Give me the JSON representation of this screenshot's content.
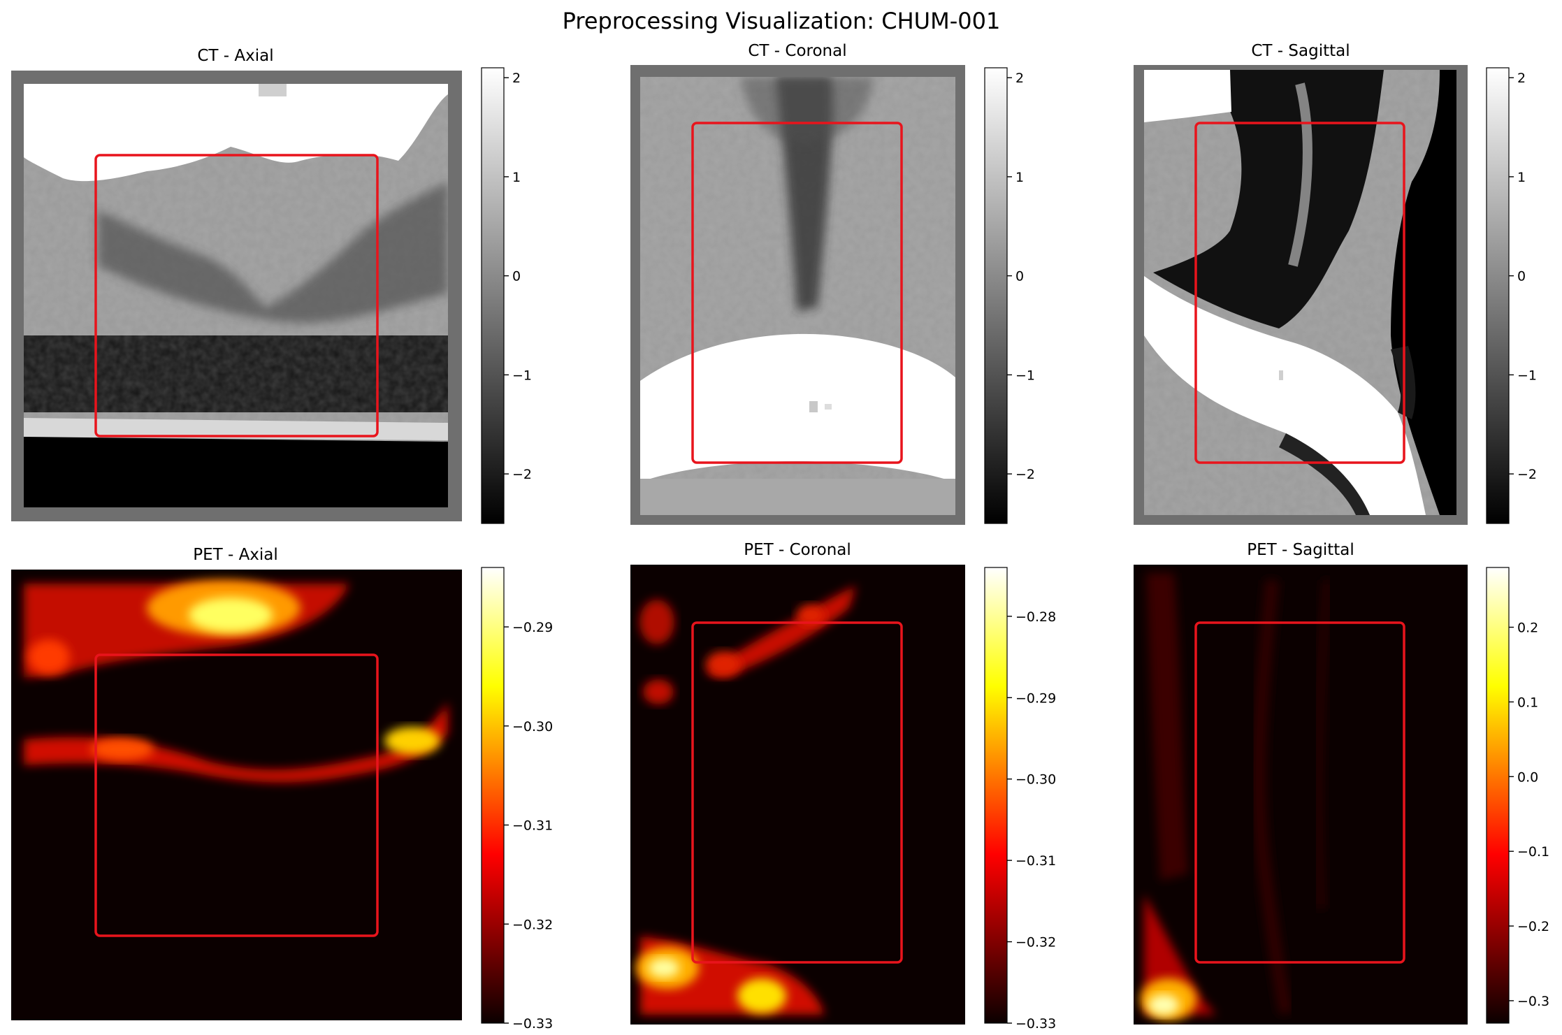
{
  "figure": {
    "title": "Preprocessing Visualization: CHUM-001"
  },
  "chart_data": [
    {
      "type": "heatmap",
      "title": "CT - Axial",
      "modality": "CT",
      "colormap": "gray",
      "colorbar": {
        "ticks": [
          -2,
          -1,
          0,
          1,
          2
        ],
        "tick_labels": [
          "−2",
          "−1",
          "0",
          "1",
          "2"
        ],
        "range": [
          -2.5,
          2.1
        ]
      },
      "bounding_box_color": "#e8141c"
    },
    {
      "type": "heatmap",
      "title": "CT - Coronal",
      "modality": "CT",
      "colormap": "gray",
      "colorbar": {
        "ticks": [
          -2,
          -1,
          0,
          1,
          2
        ],
        "tick_labels": [
          "−2",
          "−1",
          "0",
          "1",
          "2"
        ],
        "range": [
          -2.5,
          2.1
        ]
      },
      "bounding_box_color": "#e8141c"
    },
    {
      "type": "heatmap",
      "title": "CT - Sagittal",
      "modality": "CT",
      "colormap": "gray",
      "colorbar": {
        "ticks": [
          -2,
          -1,
          0,
          1,
          2
        ],
        "tick_labels": [
          "−2",
          "−1",
          "0",
          "1",
          "2"
        ],
        "range": [
          -2.5,
          2.1
        ]
      },
      "bounding_box_color": "#e8141c"
    },
    {
      "type": "heatmap",
      "title": "PET - Axial",
      "modality": "PET",
      "colormap": "hot",
      "colorbar": {
        "ticks": [
          -0.29,
          -0.3,
          -0.31,
          -0.32,
          -0.33
        ],
        "tick_labels": [
          "−0.29",
          "−0.30",
          "−0.31",
          "−0.32",
          "−0.33"
        ],
        "range": [
          -0.33,
          -0.284
        ]
      },
      "bounding_box_color": "#e8141c"
    },
    {
      "type": "heatmap",
      "title": "PET - Coronal",
      "modality": "PET",
      "colormap": "hot",
      "colorbar": {
        "ticks": [
          -0.28,
          -0.29,
          -0.3,
          -0.31,
          -0.32,
          -0.33
        ],
        "tick_labels": [
          "−0.28",
          "−0.29",
          "−0.30",
          "−0.31",
          "−0.32",
          "−0.33"
        ],
        "range": [
          -0.33,
          -0.274
        ]
      },
      "bounding_box_color": "#e8141c"
    },
    {
      "type": "heatmap",
      "title": "PET - Sagittal",
      "modality": "PET",
      "colormap": "hot",
      "colorbar": {
        "ticks": [
          0.2,
          0.1,
          0.0,
          -0.1,
          -0.2,
          -0.3
        ],
        "tick_labels": [
          "0.2",
          "0.1",
          "0.0",
          "−0.1",
          "−0.2",
          "−0.3"
        ],
        "range": [
          -0.33,
          0.28
        ]
      },
      "bounding_box_color": "#e8141c"
    }
  ]
}
